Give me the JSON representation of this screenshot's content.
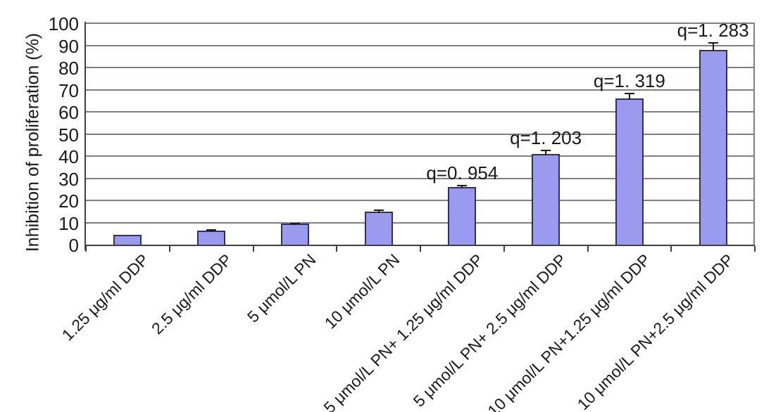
{
  "figure": {
    "ylabel": "Inhibition of proliferation (%)"
  },
  "chart_data": {
    "type": "bar",
    "title": "",
    "xlabel": "",
    "ylabel": "Inhibition of proliferation (%)",
    "ylim": [
      0,
      100
    ],
    "ytick_step": 10,
    "grid": true,
    "legend_position": "none",
    "categories": [
      "1.25 μg/ml DDP",
      "2.5 μg/ml DDP",
      "5 μmol/L PN",
      "10 μmol/L PN",
      "5 μmol/L PN+ 1.25 μg/ml DDP",
      "5 μmol/L PN+ 2.5 μg/ml DDP",
      "10 μmol/L PN+1.25 μg/ml DDP",
      "10 μmol/L PN+2.5 μg/ml DDP"
    ],
    "values": [
      4.5,
      6.5,
      9.5,
      15,
      26,
      41,
      66,
      88
    ],
    "errors": [
      0,
      0.6,
      0.4,
      0.8,
      1,
      2,
      2.5,
      3.5
    ],
    "annotations": [
      {
        "category_index": 4,
        "text": "q=0. 954"
      },
      {
        "category_index": 5,
        "text": "q=1. 203"
      },
      {
        "category_index": 6,
        "text": "q=1. 319"
      },
      {
        "category_index": 7,
        "text": "q=1. 283"
      }
    ],
    "colors": {
      "bar_fill": "#9a9aef",
      "bar_border": "#30305a",
      "gridline": "#808080",
      "axis": "#404040",
      "error_bar": "#1a1a1a",
      "background": "#ffffff",
      "text": "#1a1a1a"
    }
  }
}
